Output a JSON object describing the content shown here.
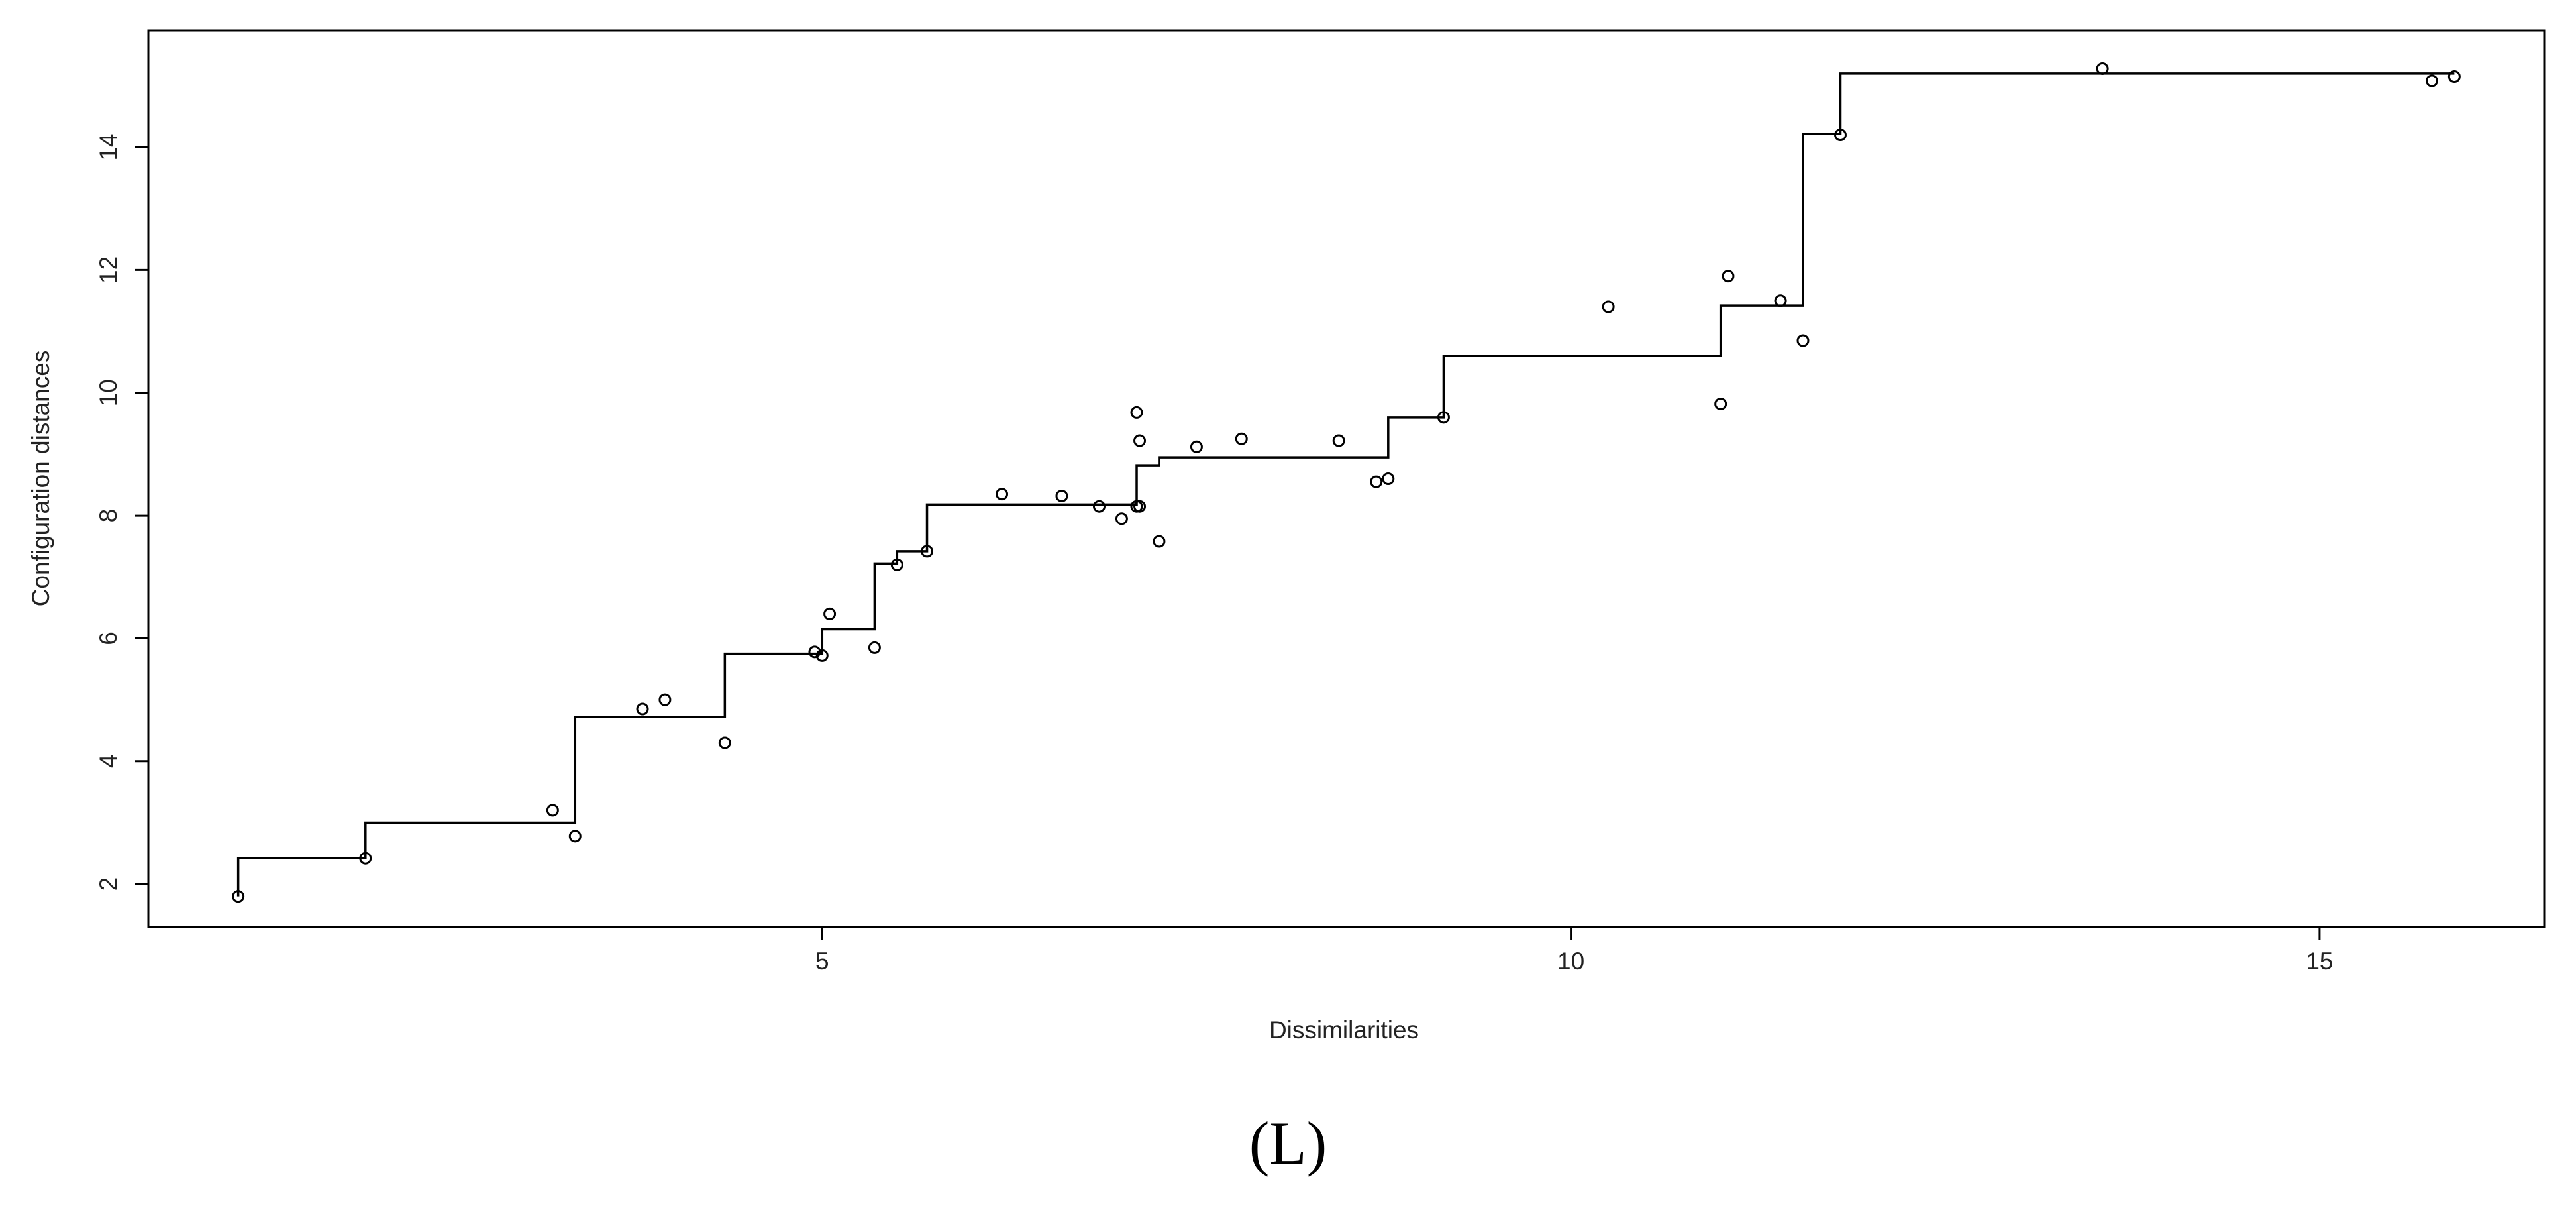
{
  "chart_data": {
    "type": "scatter",
    "title": "",
    "xlabel": "Dissimilarities",
    "ylabel": "Configuration distances",
    "xlim": [
      0.5,
      16.5
    ],
    "ylim": [
      1.3,
      15.9
    ],
    "xticks": [
      5,
      10,
      15
    ],
    "yticks": [
      2,
      4,
      6,
      8,
      10,
      12,
      14
    ],
    "grid": false,
    "series": [
      {
        "kind": "points",
        "x": [
          1.1,
          1.95,
          3.2,
          3.35,
          3.8,
          3.95,
          4.35,
          4.95,
          5.0,
          5.05,
          5.35,
          5.5,
          5.7,
          6.2,
          6.6,
          6.85,
          7.0,
          7.1,
          7.1,
          7.12,
          7.12,
          7.25,
          7.5,
          7.8,
          8.45,
          8.7,
          8.78,
          9.15,
          10.25,
          11.0,
          11.05,
          11.4,
          11.55,
          11.8,
          13.55,
          15.75,
          15.9
        ],
        "y": [
          1.8,
          2.42,
          3.2,
          2.78,
          4.85,
          5.0,
          4.3,
          5.78,
          5.72,
          6.4,
          5.85,
          7.2,
          7.42,
          8.35,
          8.32,
          8.15,
          7.95,
          8.15,
          9.68,
          9.22,
          8.15,
          7.58,
          9.12,
          9.25,
          9.22,
          8.55,
          8.6,
          9.6,
          11.4,
          9.82,
          11.9,
          11.5,
          10.85,
          14.2,
          15.28,
          15.08,
          15.15
        ]
      },
      {
        "kind": "step",
        "x": [
          1.1,
          1.95,
          3.35,
          4.35,
          5.0,
          5.35,
          5.5,
          5.7,
          7.1,
          7.25,
          8.78,
          9.15,
          11.0,
          11.55,
          11.8,
          15.9
        ],
        "y": [
          2.42,
          3.0,
          4.72,
          5.75,
          6.15,
          7.22,
          7.42,
          8.18,
          8.82,
          8.95,
          9.6,
          10.6,
          11.42,
          14.22,
          15.2,
          15.2
        ]
      }
    ]
  },
  "caption": "(L)"
}
